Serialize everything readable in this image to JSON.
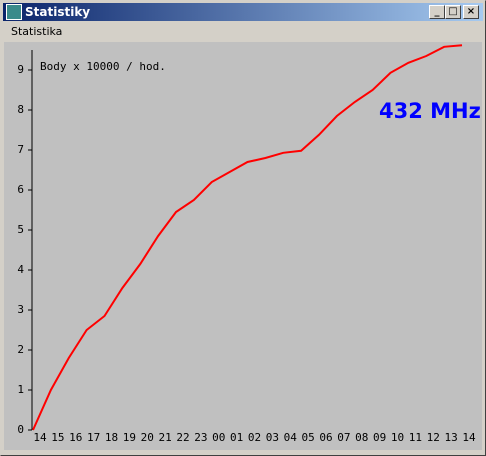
{
  "window": {
    "title": "Statistiky",
    "menu": [
      "Statistika"
    ]
  },
  "chart_data": {
    "type": "line",
    "annotations": [
      "Body x 10000 / hod.",
      "432 MHz"
    ],
    "categories": [
      "14",
      "15",
      "16",
      "17",
      "18",
      "19",
      "20",
      "21",
      "22",
      "23",
      "00",
      "01",
      "02",
      "03",
      "04",
      "05",
      "06",
      "07",
      "08",
      "09",
      "10",
      "11",
      "12",
      "13",
      "14"
    ],
    "series": [
      {
        "color": "#ff0000",
        "values": [
          0,
          1.0,
          1.8,
          2.5,
          2.85,
          3.55,
          4.15,
          4.85,
          5.45,
          5.75,
          6.2,
          6.45,
          6.7,
          6.8,
          6.93,
          6.98,
          7.38,
          7.85,
          8.2,
          8.5,
          8.93,
          9.18,
          9.35,
          9.58,
          9.62
        ]
      }
    ],
    "ylim": [
      0,
      9.75
    ],
    "yticks": [
      0,
      1,
      2,
      3,
      4,
      5,
      6,
      7,
      8,
      9
    ]
  }
}
